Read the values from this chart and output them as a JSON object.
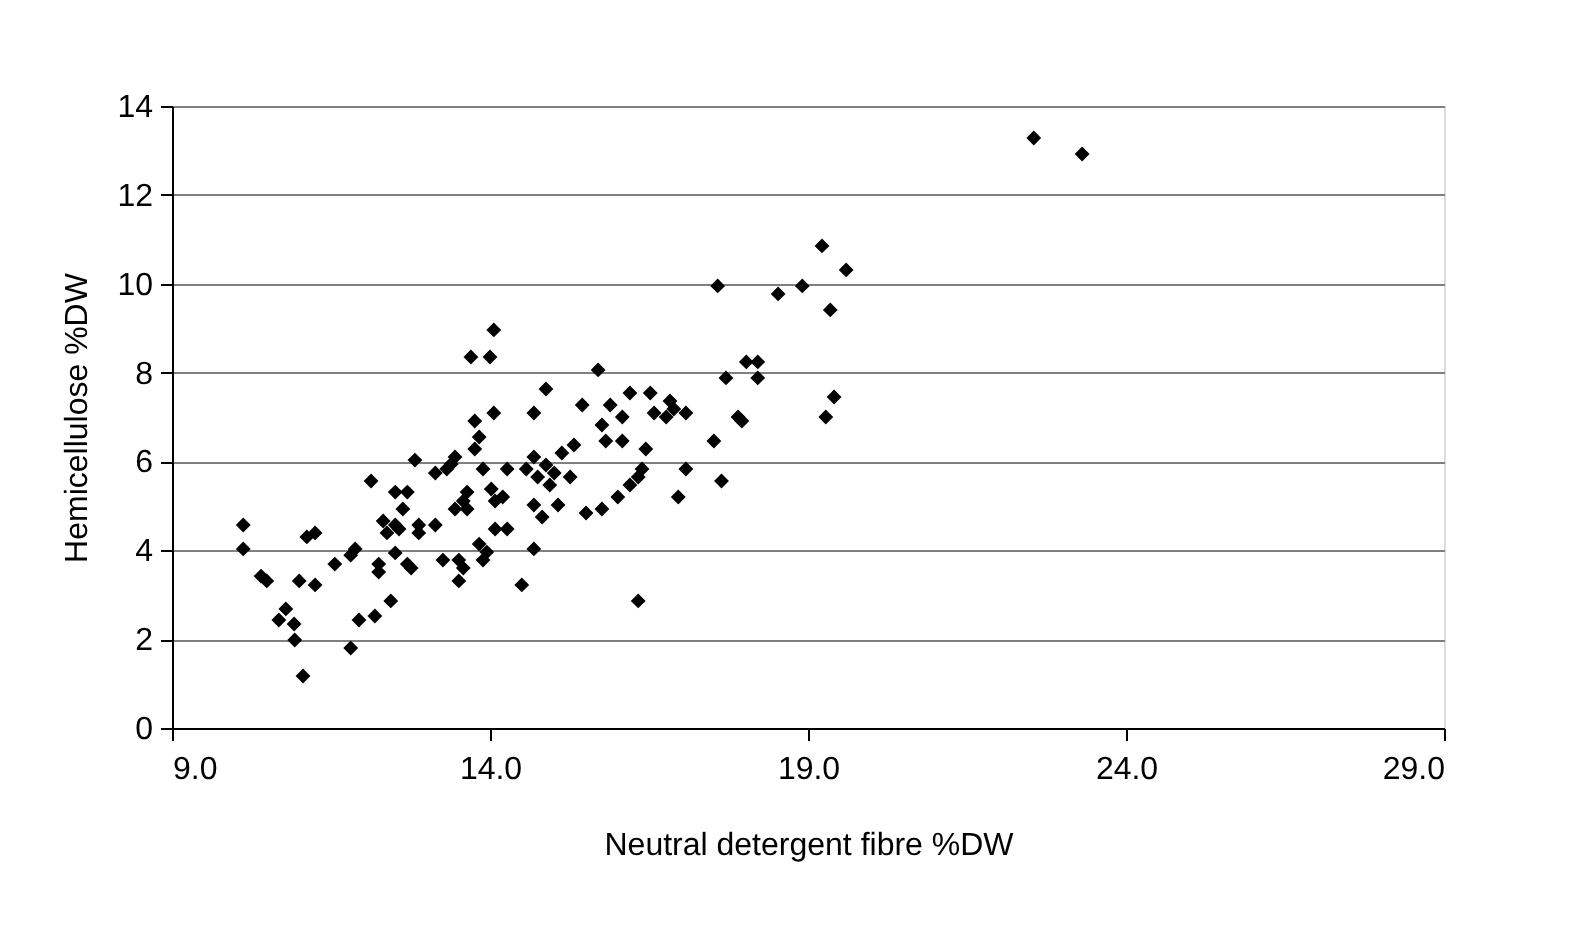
{
  "chart_data": {
    "type": "scatter",
    "xlabel": "Neutral detergent fibre %DW",
    "ylabel": "Hemicellulose %DW",
    "x": [
      10.12,
      10.12,
      10.4,
      10.49,
      10.68,
      10.79,
      10.92,
      10.93,
      11.06,
      11.0,
      11.12,
      11.25,
      11.25,
      11.56,
      11.81,
      11.81,
      11.88,
      11.94,
      12.13,
      12.19,
      12.25,
      12.25,
      12.32,
      12.38,
      12.44,
      12.51,
      12.51,
      12.51,
      12.57,
      12.63,
      12.7,
      12.7,
      12.76,
      12.82,
      12.88,
      12.88,
      13.14,
      13.14,
      13.26,
      13.32,
      13.39,
      13.45,
      13.45,
      13.51,
      13.51,
      13.58,
      13.58,
      13.64,
      13.64,
      13.7,
      13.76,
      13.76,
      13.83,
      13.83,
      13.89,
      13.89,
      13.95,
      14.0,
      14.06,
      14.06,
      14.02,
      14.08,
      14.08,
      14.2,
      14.27,
      14.27,
      14.5,
      14.57,
      14.69,
      14.69,
      14.69,
      14.69,
      14.75,
      14.82,
      14.88,
      14.88,
      14.94,
      15.01,
      15.07,
      15.13,
      15.26,
      15.32,
      15.45,
      15.51,
      15.7,
      15.76,
      15.76,
      15.82,
      15.89,
      16.01,
      16.08,
      16.08,
      16.2,
      16.2,
      16.33,
      16.33,
      16.39,
      16.45,
      16.52,
      16.58,
      16.77,
      16.83,
      16.89,
      16.96,
      17.08,
      17.08,
      17.52,
      17.58,
      17.64,
      17.71,
      17.9,
      17.96,
      18.03,
      18.21,
      18.21,
      18.53,
      18.91,
      19.22,
      19.28,
      19.35,
      19.41,
      19.6,
      22.55,
      23.31
    ],
    "series": [
      {
        "color": "#000000",
        "values": [
          4.57,
          4.03,
          3.42,
          3.31,
          2.43,
          2.68,
          2.34,
          1.98,
          1.17,
          3.31,
          4.3,
          4.39,
          3.22,
          3.69,
          1.8,
          3.89,
          4.03,
          2.43,
          5.56,
          2.52,
          3.69,
          3.51,
          4.66,
          4.39,
          2.86,
          3.94,
          4.57,
          5.31,
          4.48,
          4.93,
          5.31,
          3.69,
          3.6,
          6.03,
          4.39,
          4.57,
          4.57,
          5.74,
          3.78,
          5.83,
          5.94,
          6.1,
          4.93,
          3.31,
          3.78,
          3.6,
          5.11,
          4.93,
          5.31,
          8.35,
          6.28,
          6.91,
          6.55,
          4.14,
          5.83,
          3.78,
          3.96,
          8.35,
          8.96,
          7.09,
          5.38,
          5.11,
          4.48,
          5.2,
          4.48,
          5.83,
          3.22,
          5.83,
          4.03,
          7.09,
          6.1,
          5.02,
          5.65,
          4.75,
          7.63,
          5.92,
          5.47,
          5.74,
          5.02,
          6.19,
          5.65,
          6.37,
          7.27,
          4.84,
          8.06,
          4.93,
          6.82,
          6.46,
          7.27,
          5.2,
          6.46,
          7.0,
          7.54,
          5.47,
          2.86,
          5.65,
          5.83,
          6.28,
          7.54,
          7.09,
          7.0,
          7.36,
          7.18,
          5.2,
          7.09,
          5.83,
          6.46,
          9.95,
          5.56,
          7.88,
          7.0,
          6.91,
          8.24,
          8.24,
          7.88,
          9.77,
          9.95,
          10.85,
          7.0,
          9.41,
          7.45,
          10.31,
          13.28,
          12.92
        ]
      }
    ],
    "xlim": [
      9,
      29
    ],
    "ylim": [
      0,
      14
    ],
    "xticks": [
      {
        "value": 9,
        "label": "9.0"
      },
      {
        "value": 14,
        "label": "14.0"
      },
      {
        "value": 19,
        "label": "19.0"
      },
      {
        "value": 24,
        "label": "24.0"
      },
      {
        "value": 29,
        "label": "29.0"
      }
    ],
    "yticks": [
      0,
      2,
      4,
      6,
      8,
      10,
      12,
      14
    ],
    "grid": "y",
    "marker": "diamond"
  }
}
